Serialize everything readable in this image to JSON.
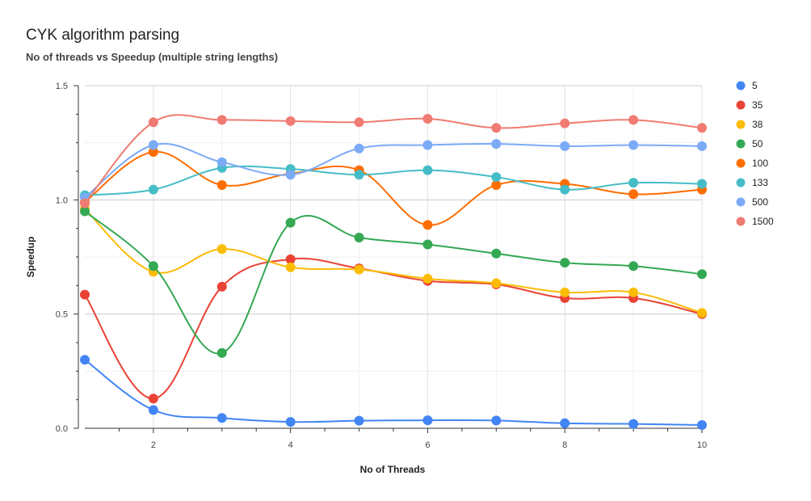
{
  "title": "CYK algorithm parsing",
  "subtitle": "No of threads vs Speedup (multiple string lengths)",
  "chart_data": {
    "type": "line",
    "title": "CYK algorithm parsing",
    "subtitle": "No of threads vs Speedup (multiple string lengths)",
    "xlabel": "No of Threads",
    "ylabel": "Speedup",
    "x": [
      1,
      2,
      3,
      4,
      5,
      6,
      7,
      8,
      9,
      10
    ],
    "xlim": [
      1,
      10
    ],
    "ylim": [
      0,
      1.5
    ],
    "x_ticks": [
      2,
      4,
      6,
      8,
      10
    ],
    "y_ticks": [
      0,
      0.5,
      1.0,
      1.5
    ],
    "x_tick_labels": [
      "2",
      "4",
      "6",
      "8",
      "10"
    ],
    "y_tick_labels": [
      "0.0",
      "0.5",
      "1.0",
      "1.5"
    ],
    "grid": true,
    "legend_position": "right",
    "smooth": true,
    "series": [
      {
        "name": "5",
        "color": "#4285f4",
        "values": [
          0.3,
          0.08,
          0.045,
          0.028,
          0.033,
          0.035,
          0.034,
          0.022,
          0.019,
          0.014
        ]
      },
      {
        "name": "35",
        "color": "#ea4335",
        "values": [
          0.585,
          0.13,
          0.62,
          0.74,
          0.7,
          0.645,
          0.63,
          0.57,
          0.57,
          0.5
        ]
      },
      {
        "name": "38",
        "color": "#fbbc04",
        "values": [
          0.96,
          0.685,
          0.785,
          0.705,
          0.695,
          0.655,
          0.635,
          0.595,
          0.595,
          0.505
        ]
      },
      {
        "name": "50",
        "color": "#34a853",
        "values": [
          0.95,
          0.71,
          0.33,
          0.9,
          0.835,
          0.805,
          0.765,
          0.725,
          0.71,
          0.675
        ]
      },
      {
        "name": "100",
        "color": "#ff6d01",
        "values": [
          0.99,
          1.21,
          1.065,
          1.115,
          1.13,
          0.89,
          1.065,
          1.07,
          1.025,
          1.045
        ]
      },
      {
        "name": "133",
        "color": "#46bdc6",
        "values": [
          1.02,
          1.045,
          1.14,
          1.135,
          1.11,
          1.13,
          1.1,
          1.045,
          1.075,
          1.07
        ]
      },
      {
        "name": "500",
        "color": "#7baaf7",
        "values": [
          1.01,
          1.24,
          1.165,
          1.11,
          1.225,
          1.24,
          1.245,
          1.235,
          1.24,
          1.235
        ]
      },
      {
        "name": "1500",
        "color": "#f07b72",
        "values": [
          0.985,
          1.34,
          1.35,
          1.345,
          1.34,
          1.355,
          1.315,
          1.335,
          1.35,
          1.315
        ]
      }
    ]
  }
}
